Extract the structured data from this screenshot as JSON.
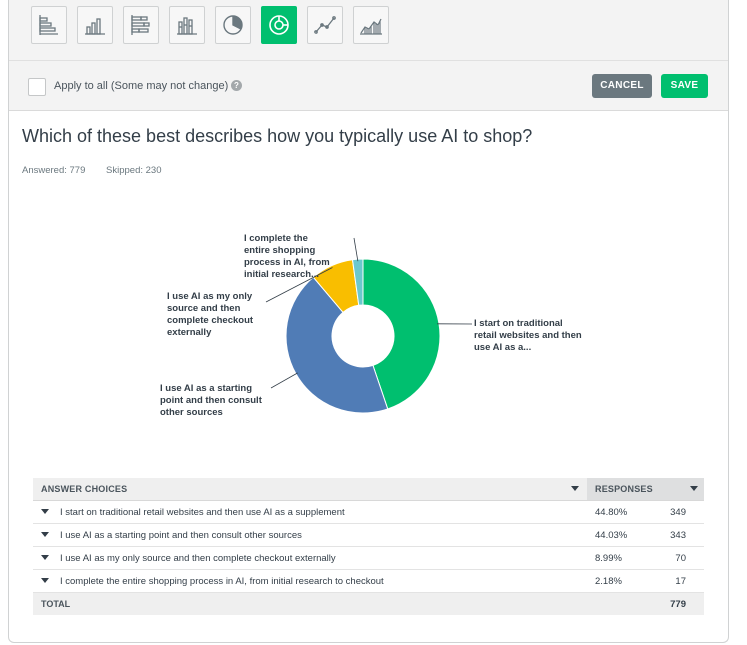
{
  "toolbar": {
    "chart_types": [
      {
        "name": "horizontal-bar",
        "active": false
      },
      {
        "name": "vertical-bar",
        "active": false
      },
      {
        "name": "stacked-horizontal-bar",
        "active": false
      },
      {
        "name": "stacked-vertical-bar",
        "active": false
      },
      {
        "name": "pie",
        "active": false
      },
      {
        "name": "donut",
        "active": true
      },
      {
        "name": "line",
        "active": false
      },
      {
        "name": "area",
        "active": false
      }
    ],
    "active_color": "#00bf6f"
  },
  "options": {
    "apply_all_label": "Apply to all (Some may not change)",
    "help_icon": "?",
    "cancel_label": "CANCEL",
    "save_label": "SAVE"
  },
  "question": {
    "title": "Which of these best describes how you typically use AI to shop?",
    "answered": "Answered: 779",
    "skipped": "Skipped: 230"
  },
  "chart_data": {
    "type": "pie",
    "donut": true,
    "categories": [
      "I start on traditional retail websites and then use AI as a...",
      "I use AI as a starting point and then consult other sources",
      "I use AI as my only source and then complete checkout externally",
      "I complete the entire shopping process in AI, from initial research..."
    ],
    "values": [
      44.8,
      44.03,
      8.99,
      2.18
    ],
    "colors": [
      "#00bf6f",
      "#507cb6",
      "#f9be00",
      "#6bc8cd"
    ]
  },
  "table": {
    "col_answer": "ANSWER CHOICES",
    "col_responses": "RESPONSES",
    "rows": [
      {
        "label": "I start on traditional retail websites and then use AI as a supplement",
        "pct": "44.80%",
        "count": "349"
      },
      {
        "label": "I use AI as a starting point and then consult other sources",
        "pct": "44.03%",
        "count": "343"
      },
      {
        "label": "I use AI as my only source and then complete checkout externally",
        "pct": "8.99%",
        "count": "70"
      },
      {
        "label": "I complete the entire shopping process in AI, from initial research to checkout",
        "pct": "2.18%",
        "count": "17"
      }
    ],
    "total_label": "TOTAL",
    "total_count": "779"
  }
}
